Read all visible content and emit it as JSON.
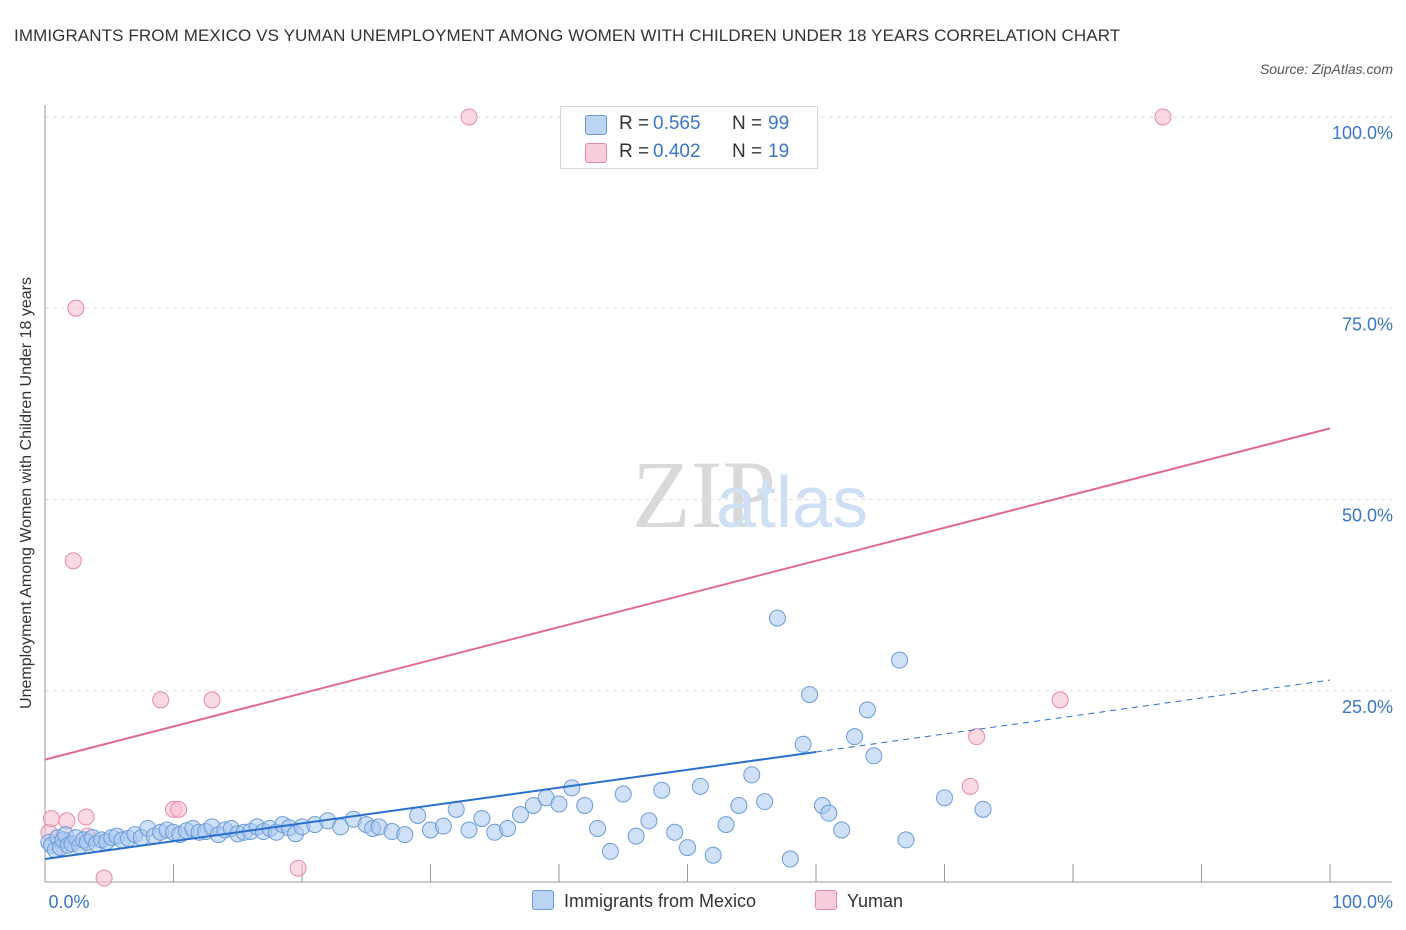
{
  "title": "IMMIGRANTS FROM MEXICO VS YUMAN UNEMPLOYMENT AMONG WOMEN WITH CHILDREN UNDER 18 YEARS CORRELATION CHART",
  "source": "Source: ZipAtlas.com",
  "watermark": {
    "zip": "ZIP",
    "atlas": "atlas"
  },
  "legend": {
    "r_label": "R =",
    "n_label": "N =",
    "series": [
      {
        "name": "Immigrants from Mexico",
        "r": "0.565",
        "n": "99"
      },
      {
        "name": "Yuman",
        "r": "0.402",
        "n": "19"
      }
    ]
  },
  "colors": {
    "blue_fill": "#a9c8f0",
    "blue_stroke": "#6b9bd8",
    "blue_line": "#2a6fcc",
    "pink_fill": "#f6bfd0",
    "pink_stroke": "#e58aa8",
    "pink_line": "#e06a92",
    "axis_label": "#3b76c7",
    "grid": "#dddddd"
  },
  "chart_data": {
    "type": "scatter",
    "title": "IMMIGRANTS FROM MEXICO VS YUMAN UNEMPLOYMENT AMONG WOMEN WITH CHILDREN UNDER 18 YEARS CORRELATION CHART",
    "xlabel": "",
    "ylabel": "Unemployment Among Women with Children Under 18 years",
    "xlim": [
      0,
      100
    ],
    "ylim": [
      0,
      100
    ],
    "x_tick_labels": [
      "0.0%",
      "100.0%"
    ],
    "y_ticks": [
      25,
      50,
      75,
      100
    ],
    "y_tick_labels": [
      "25.0%",
      "50.0%",
      "75.0%",
      "100.0%"
    ],
    "grid": true,
    "legend_position": "top-center",
    "series": [
      {
        "name": "Immigrants from Mexico",
        "r": 0.565,
        "n": 99,
        "points": [
          [
            0.3,
            5.2
          ],
          [
            0.5,
            4.8
          ],
          [
            0.8,
            4.2
          ],
          [
            1.0,
            5.8
          ],
          [
            1.2,
            4.5
          ],
          [
            1.4,
            5.5
          ],
          [
            1.6,
            6.2
          ],
          [
            1.8,
            4.8
          ],
          [
            2.1,
            5.0
          ],
          [
            2.4,
            5.8
          ],
          [
            2.7,
            4.7
          ],
          [
            3.0,
            5.5
          ],
          [
            3.3,
            5.2
          ],
          [
            3.7,
            5.8
          ],
          [
            4.0,
            5.0
          ],
          [
            4.4,
            5.5
          ],
          [
            4.8,
            5.3
          ],
          [
            5.2,
            5.8
          ],
          [
            5.6,
            6.0
          ],
          [
            6.0,
            5.5
          ],
          [
            6.5,
            5.7
          ],
          [
            7.0,
            6.2
          ],
          [
            7.5,
            5.8
          ],
          [
            8.0,
            7.0
          ],
          [
            8.5,
            6.0
          ],
          [
            9.0,
            6.5
          ],
          [
            9.5,
            6.8
          ],
          [
            10.0,
            6.5
          ],
          [
            10.5,
            6.2
          ],
          [
            11.0,
            6.7
          ],
          [
            11.5,
            7.0
          ],
          [
            12.0,
            6.5
          ],
          [
            12.5,
            6.6
          ],
          [
            13.0,
            7.2
          ],
          [
            13.5,
            6.2
          ],
          [
            14.0,
            6.8
          ],
          [
            14.5,
            7.0
          ],
          [
            15.0,
            6.3
          ],
          [
            15.5,
            6.5
          ],
          [
            16.0,
            6.6
          ],
          [
            16.5,
            7.2
          ],
          [
            17.0,
            6.6
          ],
          [
            17.5,
            7.0
          ],
          [
            18.0,
            6.5
          ],
          [
            18.5,
            7.5
          ],
          [
            19.0,
            7.1
          ],
          [
            19.5,
            6.3
          ],
          [
            20.0,
            7.2
          ],
          [
            21.0,
            7.5
          ],
          [
            22.0,
            8.0
          ],
          [
            23.0,
            7.2
          ],
          [
            24.0,
            8.2
          ],
          [
            25.0,
            7.5
          ],
          [
            25.5,
            7.0
          ],
          [
            26.0,
            7.2
          ],
          [
            27.0,
            6.6
          ],
          [
            28.0,
            6.2
          ],
          [
            29.0,
            8.7
          ],
          [
            30.0,
            6.8
          ],
          [
            31.0,
            7.3
          ],
          [
            32.0,
            9.5
          ],
          [
            33.0,
            6.8
          ],
          [
            34.0,
            8.3
          ],
          [
            35.0,
            6.5
          ],
          [
            36.0,
            7.0
          ],
          [
            37.0,
            8.8
          ],
          [
            38.0,
            10.0
          ],
          [
            39.0,
            11.0
          ],
          [
            40.0,
            10.2
          ],
          [
            41.0,
            12.3
          ],
          [
            42.0,
            10.0
          ],
          [
            43.0,
            7.0
          ],
          [
            44.0,
            4.0
          ],
          [
            45.0,
            11.5
          ],
          [
            46.0,
            6.0
          ],
          [
            47.0,
            8.0
          ],
          [
            48.0,
            12.0
          ],
          [
            49.0,
            6.5
          ],
          [
            50.0,
            4.5
          ],
          [
            51.0,
            12.5
          ],
          [
            52.0,
            3.5
          ],
          [
            53.0,
            7.5
          ],
          [
            54.0,
            10.0
          ],
          [
            55.0,
            14.0
          ],
          [
            56.0,
            10.5
          ],
          [
            57.0,
            34.5
          ],
          [
            58.0,
            3.0
          ],
          [
            59.0,
            18.0
          ],
          [
            59.5,
            24.5
          ],
          [
            60.5,
            10.0
          ],
          [
            61.0,
            9.0
          ],
          [
            62.0,
            6.8
          ],
          [
            63.0,
            19.0
          ],
          [
            64.0,
            22.5
          ],
          [
            64.5,
            16.5
          ],
          [
            66.5,
            29.0
          ],
          [
            67.0,
            5.5
          ],
          [
            70.0,
            11.0
          ],
          [
            73.0,
            9.5
          ]
        ],
        "trend": {
          "x": [
            0,
            60
          ],
          "y": [
            3.0,
            17.0
          ],
          "dashed_extension_to_x": 100,
          "dashed_end_y": 26.4
        }
      },
      {
        "name": "Yuman",
        "r": 0.402,
        "n": 19,
        "points": [
          [
            0.3,
            6.5
          ],
          [
            0.5,
            8.3
          ],
          [
            1.5,
            5.5
          ],
          [
            1.7,
            8.0
          ],
          [
            2.2,
            42.0
          ],
          [
            2.4,
            75.0
          ],
          [
            3.2,
            8.5
          ],
          [
            3.3,
            6.0
          ],
          [
            4.6,
            0.5
          ],
          [
            9.0,
            23.8
          ],
          [
            10.0,
            9.5
          ],
          [
            10.4,
            9.5
          ],
          [
            13.0,
            23.8
          ],
          [
            19.7,
            1.8
          ],
          [
            33.0,
            100.0
          ],
          [
            72.0,
            12.5
          ],
          [
            72.5,
            19.0
          ],
          [
            79.0,
            23.8
          ],
          [
            87.0,
            100.0
          ]
        ],
        "trend": {
          "x": [
            0,
            100
          ],
          "y": [
            16.0,
            59.3
          ]
        }
      }
    ]
  }
}
